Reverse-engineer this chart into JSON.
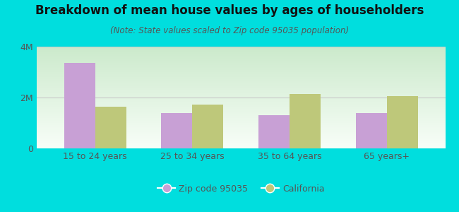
{
  "title": "Breakdown of mean house values by ages of householders",
  "subtitle": "(Note: State values scaled to Zip code 95035 population)",
  "categories": [
    "15 to 24 years",
    "25 to 34 years",
    "35 to 64 years",
    "65 years+"
  ],
  "zip_values": [
    3350000,
    1400000,
    1300000,
    1380000
  ],
  "ca_values": [
    1650000,
    1720000,
    2150000,
    2050000
  ],
  "zip_color": "#c8a0d5",
  "ca_color": "#bec87a",
  "background_outer": "#00dede",
  "background_plot_top": "#f0f8f0",
  "background_plot_bottom": "#d8f0d0",
  "ylim": [
    0,
    4000000
  ],
  "yticks": [
    0,
    2000000,
    4000000
  ],
  "ytick_labels": [
    "0",
    "2M",
    "4M"
  ],
  "legend_zip": "Zip code 95035",
  "legend_ca": "California",
  "bar_width": 0.32,
  "title_fontsize": 12,
  "subtitle_fontsize": 8.5,
  "tick_fontsize": 9,
  "legend_fontsize": 9,
  "grid_color": "#c8c8c8"
}
